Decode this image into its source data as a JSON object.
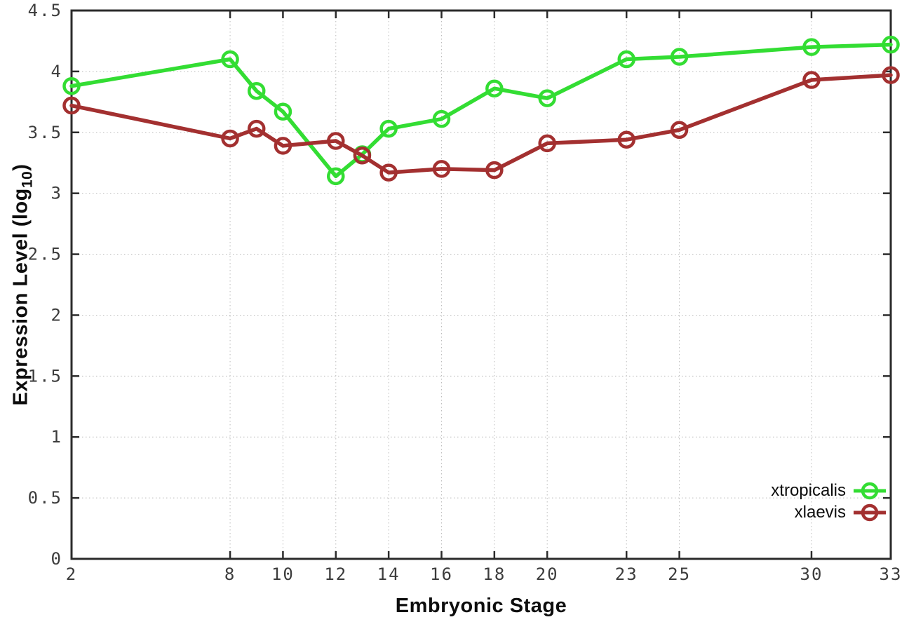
{
  "chart_data": {
    "type": "line",
    "title": "",
    "xlabel": "Embryonic Stage",
    "ylabel_prefix": "Expression Level (log",
    "ylabel_sub": "10",
    "ylabel_suffix": ")",
    "x": [
      2,
      8,
      9,
      10,
      12,
      13,
      14,
      16,
      18,
      20,
      23,
      25,
      30,
      33
    ],
    "series": [
      {
        "name": "xtropicalis",
        "color": "#33dd33",
        "values": [
          3.88,
          4.1,
          3.84,
          3.67,
          3.14,
          3.32,
          3.53,
          3.61,
          3.86,
          3.78,
          4.1,
          4.12,
          4.2,
          4.22
        ]
      },
      {
        "name": "xlaevis",
        "color": "#a33030",
        "values": [
          3.72,
          3.45,
          3.53,
          3.39,
          3.43,
          3.31,
          3.17,
          3.2,
          3.19,
          3.41,
          3.44,
          3.52,
          3.93,
          3.97
        ]
      }
    ],
    "xlim": [
      2,
      33
    ],
    "ylim": [
      0,
      4.5
    ],
    "x_ticks": [
      2,
      8,
      10,
      12,
      14,
      16,
      18,
      20,
      23,
      25,
      30,
      33
    ],
    "x_tick_labels": [
      "2",
      "8",
      "10",
      "12",
      "14",
      "16",
      "18",
      "20",
      "23",
      "25",
      "30",
      "33"
    ],
    "y_ticks": [
      0,
      0.5,
      1,
      1.5,
      2,
      2.5,
      3,
      3.5,
      4,
      4.5
    ],
    "y_tick_labels": [
      "0",
      "0.5",
      "1",
      "1.5",
      "2",
      "2.5",
      "3",
      "3.5",
      "4",
      "4.5"
    ],
    "grid": true,
    "legend_position": "bottom-right",
    "colors": {
      "axis": "#2b2b2b",
      "grid": "#bbbbbb",
      "tick_text": "#3c3c3c",
      "label_text": "#0d0d0d"
    }
  }
}
